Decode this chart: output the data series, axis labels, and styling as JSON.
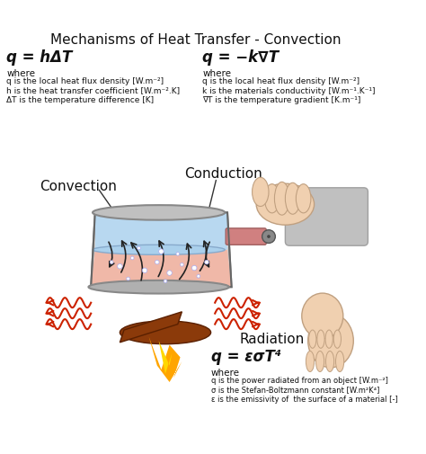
{
  "title": "Mechanisms of Heat Transfer - Convection",
  "title_fontsize": 11,
  "bg_color": "#ffffff",
  "convection_eq": "q = hΔT",
  "convection_label": "Convection",
  "convection_where": "where",
  "convection_lines": [
    "q is the local heat flux density [W.m⁻²]",
    "h is the heat transfer coefficient [W.m⁻².K]",
    "ΔT is the temperature difference [K]"
  ],
  "conduction_eq": "q = −k∇T",
  "conduction_label": "Conduction",
  "conduction_where": "where",
  "conduction_lines": [
    "q is the local heat flux density [W.m⁻²]",
    "k is the materials conductivity [W.m⁻¹.K⁻¹]",
    "∇T is the temperature gradient [K.m⁻¹]"
  ],
  "radiation_eq": "q = εσT⁴",
  "radiation_label": "Radiation",
  "radiation_where": "where",
  "radiation_lines": [
    "q is the power radiated from an object [W.m⁻²]",
    "σ is the Stefan-Boltzmann constant [W.m²K⁴]",
    "ε is the emissivity of  the surface of a material [-]"
  ],
  "wave_color": "#cc2200",
  "pot_body_color": "#c8c8c8",
  "water_top_color": "#aad4f0",
  "water_bot_color": "#f0b0a0",
  "handle_color": "#d08080",
  "log_color": "#8B3A0A",
  "flame_color_outer": "#FFA500",
  "flame_color_inner": "#FFD700",
  "arrow_color": "#222222"
}
